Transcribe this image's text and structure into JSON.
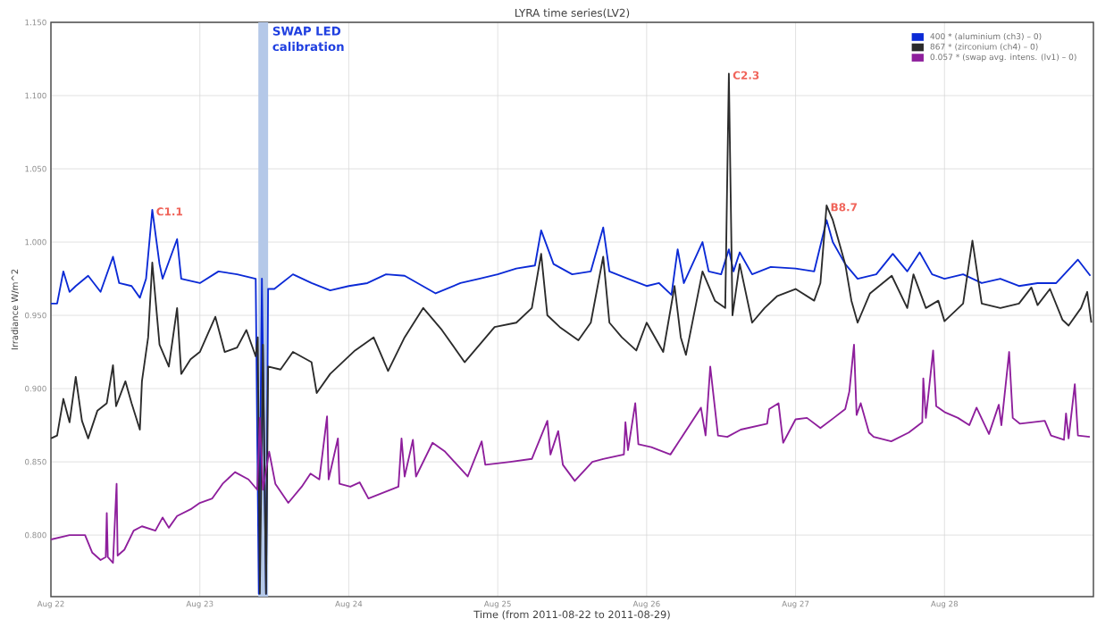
{
  "chart_data": {
    "type": "line",
    "title": "LYRA time series(LV2)",
    "xlabel": "Time (from 2011-08-22 to 2011-08-29)",
    "ylabel": "Irradiance W/m^2",
    "xlim": [
      "2011-08-22",
      "2011-08-29"
    ],
    "ylim": [
      0.758,
      1.15
    ],
    "xticks": [
      {
        "value": "2011-08-22",
        "label": "Aug 22"
      },
      {
        "value": "2011-08-23",
        "label": "Aug 23"
      },
      {
        "value": "2011-08-24",
        "label": "Aug 24"
      },
      {
        "value": "2011-08-25",
        "label": "Aug 25"
      },
      {
        "value": "2011-08-26",
        "label": "Aug 26"
      },
      {
        "value": "2011-08-27",
        "label": "Aug 27"
      },
      {
        "value": "2011-08-28",
        "label": "Aug 28"
      }
    ],
    "yticks": [
      {
        "value": 0.8,
        "label": "0.800"
      },
      {
        "value": 0.85,
        "label": "0.850"
      },
      {
        "value": 0.9,
        "label": "0.900"
      },
      {
        "value": 0.95,
        "label": "0.950"
      },
      {
        "value": 1.0,
        "label": "1.000"
      },
      {
        "value": 1.05,
        "label": "1.050"
      },
      {
        "value": 1.1,
        "label": "1.100"
      },
      {
        "value": 1.15,
        "label": "1.150"
      }
    ],
    "grid": true,
    "legend": "top right",
    "bands": [
      {
        "axis": "x",
        "from": "2011-08-23T09:25",
        "to": "2011-08-23T11:00",
        "label": "SWAP LED calibration",
        "color": "#b4c8e8"
      }
    ],
    "annotations": [
      {
        "text": "C1.1",
        "x": "2011-08-22T16:20",
        "y": 1.022
      },
      {
        "text": "C2.3",
        "x": "2011-08-26T13:15",
        "y": 1.115
      },
      {
        "text": "B8.7",
        "x": "2011-08-27T05:00",
        "y": 1.025
      }
    ],
    "series": [
      {
        "name": "400 * (aluminium (ch3) – 0)",
        "color": "#0b2ad6",
        "x": [
          "2011-08-22T00:00",
          "2011-08-22T01:00",
          "2011-08-22T02:00",
          "2011-08-22T03:00",
          "2011-08-22T04:00",
          "2011-08-22T06:00",
          "2011-08-22T08:00",
          "2011-08-22T10:00",
          "2011-08-22T11:00",
          "2011-08-22T13:00",
          "2011-08-22T14:20",
          "2011-08-22T15:20",
          "2011-08-22T16:20",
          "2011-08-22T17:30",
          "2011-08-22T18:00",
          "2011-08-22T20:20",
          "2011-08-22T21:00",
          "2011-08-23T00:00",
          "2011-08-23T03:00",
          "2011-08-23T06:00",
          "2011-08-23T09:00",
          "2011-08-23T09:30",
          "2011-08-23T10:00",
          "2011-08-23T10:40",
          "2011-08-23T11:00",
          "2011-08-23T12:00",
          "2011-08-23T15:00",
          "2011-08-23T18:00",
          "2011-08-23T21:00",
          "2011-08-24T00:00",
          "2011-08-24T03:00",
          "2011-08-24T06:00",
          "2011-08-24T09:00",
          "2011-08-24T14:00",
          "2011-08-24T18:00",
          "2011-08-24T21:00",
          "2011-08-25T00:00",
          "2011-08-25T03:00",
          "2011-08-25T06:00",
          "2011-08-25T07:00",
          "2011-08-25T09:00",
          "2011-08-25T12:00",
          "2011-08-25T15:00",
          "2011-08-25T17:00",
          "2011-08-25T18:00",
          "2011-08-25T21:00",
          "2011-08-26T00:00",
          "2011-08-26T02:00",
          "2011-08-26T04:00",
          "2011-08-26T05:00",
          "2011-08-26T06:00",
          "2011-08-26T09:00",
          "2011-08-26T10:00",
          "2011-08-26T12:00",
          "2011-08-26T13:15",
          "2011-08-26T14:00",
          "2011-08-26T15:00",
          "2011-08-26T17:00",
          "2011-08-26T20:00",
          "2011-08-27T00:00",
          "2011-08-27T03:00",
          "2011-08-27T05:00",
          "2011-08-27T06:00",
          "2011-08-27T08:00",
          "2011-08-27T10:00",
          "2011-08-27T13:00",
          "2011-08-27T15:40",
          "2011-08-27T18:00",
          "2011-08-27T20:00",
          "2011-08-27T22:00",
          "2011-08-28T00:00",
          "2011-08-28T03:00",
          "2011-08-28T06:00",
          "2011-08-28T09:00",
          "2011-08-28T12:00",
          "2011-08-28T15:00",
          "2011-08-28T18:00",
          "2011-08-28T21:30",
          "2011-08-28T23:30"
        ],
        "values": [
          0.958,
          0.958,
          0.98,
          0.966,
          0.97,
          0.977,
          0.966,
          0.99,
          0.972,
          0.97,
          0.962,
          0.975,
          1.022,
          0.985,
          0.975,
          1.002,
          0.975,
          0.972,
          0.98,
          0.978,
          0.975,
          0.76,
          0.975,
          0.76,
          0.968,
          0.968,
          0.978,
          0.972,
          0.967,
          0.97,
          0.972,
          0.978,
          0.977,
          0.965,
          0.972,
          0.975,
          0.978,
          0.982,
          0.984,
          1.008,
          0.985,
          0.978,
          0.98,
          1.01,
          0.98,
          0.975,
          0.97,
          0.972,
          0.964,
          0.995,
          0.972,
          1.0,
          0.98,
          0.978,
          0.995,
          0.98,
          0.993,
          0.978,
          0.983,
          0.982,
          0.98,
          1.015,
          1.0,
          0.985,
          0.975,
          0.978,
          0.992,
          0.98,
          0.993,
          0.978,
          0.975,
          0.978,
          0.972,
          0.975,
          0.97,
          0.972,
          0.972,
          0.988,
          0.977
        ]
      },
      {
        "name": "867 * (zirconium (ch4) – 0)",
        "color": "#2b2b2b",
        "x": [
          "2011-08-22T00:00",
          "2011-08-22T01:00",
          "2011-08-22T02:00",
          "2011-08-22T03:00",
          "2011-08-22T04:00",
          "2011-08-22T05:00",
          "2011-08-22T06:00",
          "2011-08-22T07:30",
          "2011-08-22T09:00",
          "2011-08-22T10:00",
          "2011-08-22T10:30",
          "2011-08-22T12:00",
          "2011-08-22T13:00",
          "2011-08-22T14:20",
          "2011-08-22T14:40",
          "2011-08-22T15:40",
          "2011-08-22T16:20",
          "2011-08-22T17:30",
          "2011-08-22T19:00",
          "2011-08-22T20:20",
          "2011-08-22T21:00",
          "2011-08-22T22:30",
          "2011-08-23T00:00",
          "2011-08-23T02:30",
          "2011-08-23T04:00",
          "2011-08-23T06:00",
          "2011-08-23T07:30",
          "2011-08-23T09:00",
          "2011-08-23T09:20",
          "2011-08-23T09:40",
          "2011-08-23T10:10",
          "2011-08-23T10:40",
          "2011-08-23T11:00",
          "2011-08-23T13:00",
          "2011-08-23T15:00",
          "2011-08-23T18:00",
          "2011-08-23T18:50",
          "2011-08-23T21:00",
          "2011-08-24T01:00",
          "2011-08-24T04:00",
          "2011-08-24T06:20",
          "2011-08-24T09:00",
          "2011-08-24T12:00",
          "2011-08-24T15:00",
          "2011-08-24T18:40",
          "2011-08-24T23:30",
          "2011-08-25T03:00",
          "2011-08-25T05:30",
          "2011-08-25T07:00",
          "2011-08-25T08:00",
          "2011-08-25T10:00",
          "2011-08-25T13:00",
          "2011-08-25T15:00",
          "2011-08-25T17:00",
          "2011-08-25T18:00",
          "2011-08-25T20:00",
          "2011-08-25T22:20",
          "2011-08-26T00:00",
          "2011-08-26T02:40",
          "2011-08-26T04:30",
          "2011-08-26T05:30",
          "2011-08-26T06:20",
          "2011-08-26T09:00",
          "2011-08-26T11:00",
          "2011-08-26T12:40",
          "2011-08-26T13:15",
          "2011-08-26T13:50",
          "2011-08-26T15:00",
          "2011-08-26T17:00",
          "2011-08-26T19:00",
          "2011-08-26T21:00",
          "2011-08-27T00:00",
          "2011-08-27T03:00",
          "2011-08-27T04:00",
          "2011-08-27T05:00",
          "2011-08-27T06:00",
          "2011-08-27T08:00",
          "2011-08-27T09:00",
          "2011-08-27T10:00",
          "2011-08-27T12:00",
          "2011-08-27T15:30",
          "2011-08-27T18:00",
          "2011-08-27T19:00",
          "2011-08-27T21:00",
          "2011-08-27T23:00",
          "2011-08-28T00:00",
          "2011-08-28T03:00",
          "2011-08-28T04:30",
          "2011-08-28T06:00",
          "2011-08-28T09:00",
          "2011-08-28T12:00",
          "2011-08-28T14:00",
          "2011-08-28T15:00",
          "2011-08-28T17:00",
          "2011-08-28T19:00",
          "2011-08-28T20:00",
          "2011-08-28T22:00",
          "2011-08-28T23:00",
          "2011-08-28T23:40"
        ],
        "values": [
          0.866,
          0.868,
          0.893,
          0.877,
          0.908,
          0.878,
          0.866,
          0.885,
          0.89,
          0.916,
          0.888,
          0.905,
          0.89,
          0.872,
          0.905,
          0.935,
          0.986,
          0.93,
          0.915,
          0.955,
          0.91,
          0.92,
          0.925,
          0.949,
          0.925,
          0.928,
          0.94,
          0.922,
          0.935,
          0.76,
          0.93,
          0.76,
          0.915,
          0.913,
          0.925,
          0.918,
          0.897,
          0.91,
          0.926,
          0.935,
          0.912,
          0.935,
          0.955,
          0.94,
          0.918,
          0.942,
          0.945,
          0.955,
          0.992,
          0.95,
          0.942,
          0.933,
          0.945,
          0.99,
          0.945,
          0.935,
          0.926,
          0.945,
          0.925,
          0.97,
          0.935,
          0.923,
          0.98,
          0.96,
          0.955,
          1.115,
          0.95,
          0.985,
          0.945,
          0.955,
          0.963,
          0.968,
          0.96,
          0.972,
          1.025,
          1.015,
          0.985,
          0.96,
          0.945,
          0.965,
          0.977,
          0.955,
          0.978,
          0.955,
          0.96,
          0.946,
          0.958,
          1.001,
          0.958,
          0.955,
          0.958,
          0.969,
          0.957,
          0.968,
          0.947,
          0.943,
          0.955,
          0.966,
          0.945
        ]
      },
      {
        "name": "0.057 * (swap avg. intens. (lv1) – 0)",
        "color": "#8e1f9c",
        "x": [
          "2011-08-22T00:00",
          "2011-08-22T03:00",
          "2011-08-22T05:30",
          "2011-08-22T06:40",
          "2011-08-22T08:00",
          "2011-08-22T08:50",
          "2011-08-22T09:00",
          "2011-08-22T09:10",
          "2011-08-22T10:00",
          "2011-08-22T10:35",
          "2011-08-22T10:45",
          "2011-08-22T11:50",
          "2011-08-22T13:20",
          "2011-08-22T14:40",
          "2011-08-22T16:50",
          "2011-08-22T18:00",
          "2011-08-22T19:00",
          "2011-08-22T20:20",
          "2011-08-22T22:40",
          "2011-08-23T00:00",
          "2011-08-23T02:00",
          "2011-08-23T03:40",
          "2011-08-23T05:40",
          "2011-08-23T07:50",
          "2011-08-23T09:15",
          "2011-08-23T09:40",
          "2011-08-23T10:10",
          "2011-08-23T11:10",
          "2011-08-23T12:10",
          "2011-08-23T14:15",
          "2011-08-23T16:25",
          "2011-08-23T17:50",
          "2011-08-23T19:15",
          "2011-08-23T20:30",
          "2011-08-23T20:45",
          "2011-08-23T22:15",
          "2011-08-23T22:30",
          "2011-08-24T00:15",
          "2011-08-24T01:45",
          "2011-08-24T03:10",
          "2011-08-24T08:00",
          "2011-08-24T08:30",
          "2011-08-24T09:00",
          "2011-08-24T10:20",
          "2011-08-24T10:50",
          "2011-08-24T13:30",
          "2011-08-24T15:30",
          "2011-08-24T19:10",
          "2011-08-24T21:25",
          "2011-08-24T22:00",
          "2011-08-25T02:00",
          "2011-08-25T05:30",
          "2011-08-25T08:00",
          "2011-08-25T08:30",
          "2011-08-25T09:45",
          "2011-08-25T10:30",
          "2011-08-25T12:25",
          "2011-08-25T15:15",
          "2011-08-25T17:00",
          "2011-08-25T20:20",
          "2011-08-25T20:35",
          "2011-08-25T21:00",
          "2011-08-25T22:10",
          "2011-08-25T22:40",
          "2011-08-26T00:45",
          "2011-08-26T03:50",
          "2011-08-26T08:45",
          "2011-08-26T09:30",
          "2011-08-26T10:15",
          "2011-08-26T11:30",
          "2011-08-26T13:00",
          "2011-08-26T15:10",
          "2011-08-26T19:25",
          "2011-08-26T19:45",
          "2011-08-26T21:15",
          "2011-08-26T22:00",
          "2011-08-27T00:00",
          "2011-08-27T01:50",
          "2011-08-27T04:00",
          "2011-08-27T06:10",
          "2011-08-27T08:00",
          "2011-08-27T08:40",
          "2011-08-27T09:25",
          "2011-08-27T09:50",
          "2011-08-27T10:30",
          "2011-08-27T11:50",
          "2011-08-27T12:35",
          "2011-08-27T15:25",
          "2011-08-27T18:15",
          "2011-08-27T20:25",
          "2011-08-27T20:35",
          "2011-08-27T21:00",
          "2011-08-27T22:10",
          "2011-08-27T22:40",
          "2011-08-28T00:00",
          "2011-08-28T02:10",
          "2011-08-28T04:00",
          "2011-08-28T05:10",
          "2011-08-28T07:10",
          "2011-08-28T08:45",
          "2011-08-28T09:10",
          "2011-08-28T10:25",
          "2011-08-28T11:00",
          "2011-08-28T12:10",
          "2011-08-28T16:10",
          "2011-08-28T17:10",
          "2011-08-28T19:15",
          "2011-08-28T19:35",
          "2011-08-28T20:00",
          "2011-08-28T21:00",
          "2011-08-28T21:30",
          "2011-08-28T23:25"
        ],
        "values": [
          0.797,
          0.8,
          0.8,
          0.788,
          0.783,
          0.785,
          0.815,
          0.785,
          0.781,
          0.835,
          0.786,
          0.79,
          0.803,
          0.806,
          0.803,
          0.812,
          0.805,
          0.813,
          0.818,
          0.822,
          0.825,
          0.835,
          0.843,
          0.838,
          0.831,
          0.88,
          0.831,
          0.857,
          0.835,
          0.822,
          0.833,
          0.842,
          0.838,
          0.881,
          0.838,
          0.866,
          0.835,
          0.833,
          0.836,
          0.825,
          0.833,
          0.866,
          0.84,
          0.865,
          0.84,
          0.863,
          0.857,
          0.84,
          0.864,
          0.848,
          0.85,
          0.852,
          0.878,
          0.855,
          0.871,
          0.848,
          0.837,
          0.85,
          0.852,
          0.855,
          0.877,
          0.858,
          0.89,
          0.862,
          0.86,
          0.855,
          0.887,
          0.868,
          0.915,
          0.868,
          0.867,
          0.872,
          0.876,
          0.886,
          0.89,
          0.863,
          0.879,
          0.88,
          0.873,
          0.88,
          0.886,
          0.898,
          0.93,
          0.882,
          0.89,
          0.87,
          0.867,
          0.864,
          0.87,
          0.877,
          0.907,
          0.88,
          0.926,
          0.888,
          0.884,
          0.88,
          0.875,
          0.887,
          0.869,
          0.889,
          0.875,
          0.925,
          0.88,
          0.876,
          0.878,
          0.868,
          0.865,
          0.883,
          0.866,
          0.903,
          0.868,
          0.867
        ]
      }
    ]
  }
}
